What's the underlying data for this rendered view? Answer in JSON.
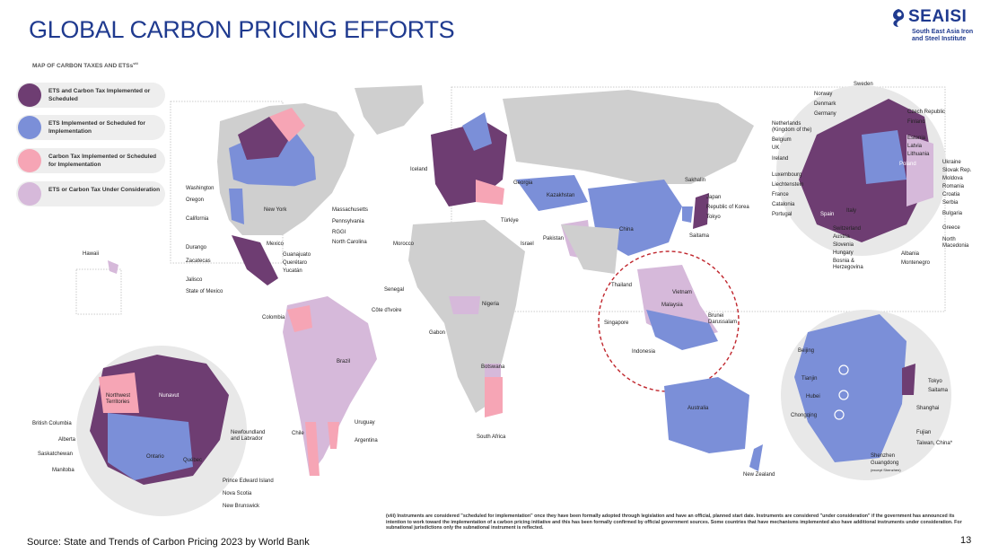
{
  "title": "GLOBAL CARBON PRICING EFFORTS",
  "logo": {
    "name": "SEAISI",
    "sub": "South East Asia Iron and Steel Institute"
  },
  "map_title": "MAP OF CARBON TAXES AND ETSs",
  "map_title_sup": "viii",
  "legend": [
    {
      "label": "ETS and Carbon Tax Implemented or Scheduled",
      "color": "#6e3d72"
    },
    {
      "label": "ETS Implemented or Scheduled for Implementation",
      "color": "#7b8fd8"
    },
    {
      "label": "Carbon Tax Implemented or Scheduled for Implementation",
      "color": "#f6a5b5"
    },
    {
      "label": "ETS or Carbon Tax Under Consideration",
      "color": "#d6b9da"
    }
  ],
  "colors": {
    "land": "#cfcfcf",
    "ocean": "#ffffff",
    "highlight_circle": "#c0262d",
    "title": "#1f3a8f"
  },
  "labels": {
    "hawaii": "Hawaii",
    "washington": "Washington",
    "oregon": "Oregon",
    "california": "California",
    "durango": "Durango",
    "zacatecas": "Zacatecas",
    "jalisco": "Jalisco",
    "state_of_mexico": "State of Mexico",
    "mexico": "Mexico",
    "guanajuato": "Guanajuato",
    "queretaro": "Querétaro",
    "yucatan": "Yucatán",
    "new_york": "New York",
    "massachusetts": "Massachusetts",
    "pennsylvania": "Pennsylvania",
    "rggi": "RGGI",
    "north_carolina": "North Carolina",
    "colombia": "Colombia",
    "brazil": "Brazil",
    "chile": "Chile",
    "uruguay": "Uruguay",
    "argentina": "Argentina",
    "iceland": "Iceland",
    "morocco": "Morocco",
    "senegal": "Senegal",
    "cote_divoire": "Côte d'Ivoire",
    "gabon": "Gabon",
    "nigeria": "Nigeria",
    "botswana": "Botswana",
    "south_africa": "South Africa",
    "georgia": "Georgia",
    "kazakhstan": "Kazakhstan",
    "turkiye": "Türkiye",
    "israel": "Israel",
    "pakistan": "Pakistan",
    "china": "China",
    "sakhalin": "Sakhalin",
    "japan": "Japan",
    "republic_of_korea": "Republic of Korea",
    "tokyo": "Tokyo",
    "saitama": "Saitama",
    "thailand": "Thailand",
    "vietnam": "Vietnam",
    "malaysia": "Malaysia",
    "brunei": "Brunei Darussalam",
    "singapore": "Singapore",
    "indonesia": "Indonesia",
    "australia": "Australia",
    "new_zealand": "New Zealand",
    "nw_territories": "Northwest Territories",
    "nunavut": "Nunavut",
    "british_columbia": "British Columbia",
    "alberta": "Alberta",
    "saskatchewan": "Saskatchewan",
    "manitoba": "Manitoba",
    "ontario": "Ontario",
    "quebec": "Québec",
    "newfoundland": "Newfoundland and Labrador",
    "pei": "Prince Edward Island",
    "nova_scotia": "Nova Scotia",
    "new_brunswick": "New Brunswick",
    "sweden": "Sweden",
    "norway": "Norway",
    "denmark": "Denmark",
    "germany": "Germany",
    "netherlands": "Netherlands (Kingdom of the)",
    "belgium": "Belgium",
    "uk": "UK",
    "ireland": "Ireland",
    "luxembourg": "Luxembourg",
    "liechtenstein": "Liechtenstein",
    "france": "France",
    "catalonia": "Catalonia",
    "portugal": "Portugal",
    "spain": "Spain",
    "italy": "Italy",
    "poland": "Poland",
    "switzerland": "Switzerland",
    "austria": "Austria",
    "slovenia": "Slovenia",
    "hungary": "Hungary",
    "bosnia": "Bosnia & Herzegovina",
    "czech": "Czech Republic",
    "finland": "Finland",
    "estonia": "Estonia",
    "latvia": "Latvia",
    "lithuania": "Lithuania",
    "ukraine": "Ukraine",
    "slovak": "Slovak Rep.",
    "moldova": "Moldova",
    "romania": "Romania",
    "croatia": "Croatia",
    "serbia": "Serbia",
    "bulgaria": "Bulgaria",
    "greece": "Greece",
    "north_macedonia": "North Macedonia",
    "albania": "Albania",
    "montenegro": "Montenegro",
    "beijing": "Beijing",
    "tianjin": "Tianjin",
    "hubei": "Hubei",
    "chongqing": "Chongqing",
    "shanghai": "Shanghai",
    "fujian": "Fujian",
    "taiwan": "Taiwan, China*",
    "shenzhen": "Shenzhen",
    "guangdong": "Guangdong",
    "guangdong_note": "(except Shenzhen)",
    "tokyo2": "Tokyo",
    "saitama2": "Saitama"
  },
  "footnote": "(viii) Instruments are considered \"scheduled for implementation\" once they have been formally adopted through legislation and have an official, planned start date. Instruments are considered \"under consideration\" if the government has announced its intention to work toward the implementation of a carbon pricing initiative and this has been formally confirmed by official government sources. Some countries that have mechanisms implemented also have additional instruments under consideration. For subnational jurisdictions only the subnational instrument is reflected.",
  "source": "Source: State and Trends of Carbon Pricing 2023 by World Bank",
  "page_number": "13"
}
